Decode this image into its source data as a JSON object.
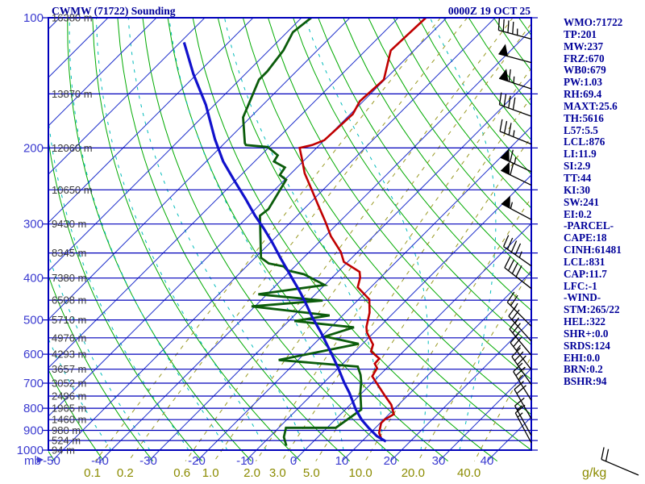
{
  "header": {
    "title": "CWMW (71722) Sounding",
    "datetime": "0000Z 19 OCT 25"
  },
  "stats_panel": {
    "lines": [
      "WMO:71722",
      "TP:201",
      "MW:237",
      "FRZ:670",
      "WB0:679",
      "PW:1.03",
      "RH:69.4",
      "MAXT:25.6",
      "TH:5616",
      "L57:5.5",
      "LCL:876",
      "LI:11.9",
      "SI:2.9",
      "TT:44",
      "KI:30",
      "SW:241",
      "EI:0.2",
      "-PARCEL-",
      "CAPE:18",
      "CINH:61481",
      "LCL:831",
      "CAP:11.7",
      "LFC:-1",
      "-WIND-",
      "STM:265/22",
      "HEL:322",
      "SHR+:0.0",
      "SRDS:124",
      "EHI:0.0",
      "BRN:0.2",
      "BSHR:94"
    ]
  },
  "axes": {
    "pressure_unit_label": "mb",
    "mixing_unit_label": "g/kg",
    "pressure_labels": [
      100,
      200,
      300,
      400,
      500,
      600,
      700,
      800,
      900,
      1000
    ],
    "altitude_labels": [
      [
        100,
        "16380 m"
      ],
      [
        150,
        "13870 m"
      ],
      [
        200,
        "12060 m"
      ],
      [
        250,
        "10650 m"
      ],
      [
        300,
        "9430 m"
      ],
      [
        350,
        "8345 m"
      ],
      [
        400,
        "7380 m"
      ],
      [
        450,
        "6508 m"
      ],
      [
        500,
        "5710 m"
      ],
      [
        550,
        "4976 m"
      ],
      [
        600,
        "4293 m"
      ],
      [
        650,
        "3657 m"
      ],
      [
        700,
        "3052 m"
      ],
      [
        750,
        "2496 m"
      ],
      [
        800,
        "1965 m"
      ],
      [
        850,
        "1460 m"
      ],
      [
        900,
        "980 m"
      ],
      [
        950,
        "524 m"
      ],
      [
        1000,
        "94 m"
      ]
    ],
    "temp_labels_c": [
      -50,
      -40,
      -30,
      -20,
      -10,
      0,
      10,
      20,
      30,
      40
    ],
    "mixing_labels": [
      "0.1",
      "0.2",
      "0.6",
      "1.0",
      "2.0",
      "3.0",
      "5.0",
      "10.0",
      "20.0",
      "40.0"
    ]
  },
  "chart_data": {
    "type": "skewt-log-p",
    "pressure_range_mb": [
      100,
      1000
    ],
    "pressure_line_step_mb": 50,
    "temp_axis_c": {
      "min": -50,
      "max": 40,
      "skew_deg": 45
    },
    "isotherm_step_c": 10,
    "dry_adiabats_K": {
      "min": 220,
      "max": 460,
      "step": 10
    },
    "moist_adiabats_thetaw_c": [
      -40,
      -32,
      -24,
      -16,
      -8,
      0,
      8,
      16,
      24,
      32
    ],
    "mixing_ratio_lines_gkg": [
      0.1,
      0.2,
      0.6,
      1.0,
      2.0,
      3.0,
      5.0,
      10.0,
      20.0,
      40.0
    ],
    "series": [
      {
        "name": "temperature",
        "color_key": "temp",
        "points_p_t": [
          [
            100,
            -64.3
          ],
          [
            119,
            -64.8
          ],
          [
            139,
            -60.2
          ],
          [
            156,
            -60.7
          ],
          [
            167,
            -59.5
          ],
          [
            192,
            -60.0
          ],
          [
            197,
            -61.5
          ],
          [
            200,
            -63.5
          ],
          [
            210,
            -61.2
          ],
          [
            229,
            -57.2
          ],
          [
            247,
            -53.0
          ],
          [
            272,
            -47.7
          ],
          [
            297,
            -42.8
          ],
          [
            320,
            -38.8
          ],
          [
            348,
            -33.5
          ],
          [
            367,
            -30.8
          ],
          [
            387,
            -25.5
          ],
          [
            399,
            -24.2
          ],
          [
            420,
            -22.7
          ],
          [
            448,
            -17.8
          ],
          [
            481,
            -15.0
          ],
          [
            519,
            -12.7
          ],
          [
            534,
            -11.5
          ],
          [
            570,
            -7.7
          ],
          [
            591,
            -6.7
          ],
          [
            614,
            -3.5
          ],
          [
            631,
            -3.4
          ],
          [
            646,
            -2.0
          ],
          [
            675,
            -1.3
          ],
          [
            702,
            1.2
          ],
          [
            747,
            5.2
          ],
          [
            785,
            8.5
          ],
          [
            826,
            11.0
          ],
          [
            849,
            10.2
          ],
          [
            866,
            10.2
          ],
          [
            912,
            11.8
          ],
          [
            945,
            13.7
          ]
        ]
      },
      {
        "name": "dewpoint",
        "color_key": "dewpoint",
        "points_p_t": [
          [
            100,
            -88.0
          ],
          [
            108,
            -88.8
          ],
          [
            119,
            -87.0
          ],
          [
            133,
            -86.0
          ],
          [
            139,
            -86.0
          ],
          [
            159,
            -83.0
          ],
          [
            170,
            -81.5
          ],
          [
            195,
            -75.8
          ],
          [
            197,
            -75.2
          ],
          [
            199,
            -70.3
          ],
          [
            208,
            -66.5
          ],
          [
            215,
            -66.0
          ],
          [
            222,
            -62.5
          ],
          [
            231,
            -62.0
          ],
          [
            237,
            -59.7
          ],
          [
            277,
            -57.3
          ],
          [
            287,
            -57.7
          ],
          [
            359,
            -48.8
          ],
          [
            370,
            -46.0
          ],
          [
            376,
            -42.3
          ],
          [
            384,
            -40.7
          ],
          [
            392,
            -36.5
          ],
          [
            415,
            -30.0
          ],
          [
            436,
            -41.8
          ],
          [
            451,
            -27.2
          ],
          [
            465,
            -40.7
          ],
          [
            488,
            -22.7
          ],
          [
            503,
            -28.8
          ],
          [
            520,
            -15.2
          ],
          [
            546,
            -19.3
          ],
          [
            568,
            -10.8
          ],
          [
            619,
            -24.0
          ],
          [
            641,
            -6.3
          ],
          [
            670,
            -4.0
          ],
          [
            694,
            -2.5
          ],
          [
            738,
            -0.3
          ],
          [
            771,
            1.5
          ],
          [
            806,
            3.3
          ],
          [
            888,
            1.8
          ],
          [
            888,
            -8.5
          ],
          [
            933,
            -7.0
          ],
          [
            977,
            -4.7
          ]
        ]
      },
      {
        "name": "parcel",
        "color_key": "parcel",
        "points_p_t": [
          [
            114,
            -109.2
          ],
          [
            135,
            -100.7
          ],
          [
            159,
            -91.8
          ],
          [
            191,
            -82.8
          ],
          [
            215,
            -76.5
          ],
          [
            237,
            -70.5
          ],
          [
            263,
            -64.0
          ],
          [
            287,
            -58.7
          ],
          [
            307,
            -54.3
          ],
          [
            330,
            -49.8
          ],
          [
            359,
            -44.8
          ],
          [
            380,
            -41.3
          ],
          [
            400,
            -38.2
          ],
          [
            426,
            -34.3
          ],
          [
            449,
            -31.2
          ],
          [
            492,
            -26.0
          ],
          [
            534,
            -21.0
          ],
          [
            574,
            -16.8
          ],
          [
            611,
            -13.2
          ],
          [
            650,
            -9.7
          ],
          [
            698,
            -5.8
          ],
          [
            736,
            -2.7
          ],
          [
            806,
            2.2
          ],
          [
            851,
            5.5
          ],
          [
            887,
            8.5
          ],
          [
            928,
            12.0
          ],
          [
            955,
            15.0
          ]
        ]
      }
    ],
    "wind_barbs": [
      {
        "p": 112,
        "dir_deg": 285,
        "speed_kt": 45
      },
      {
        "p": 127,
        "dir_deg": 285,
        "speed_kt": 50
      },
      {
        "p": 146,
        "dir_deg": 288,
        "speed_kt": 65
      },
      {
        "p": 169,
        "dir_deg": 290,
        "speed_kt": 40
      },
      {
        "p": 196,
        "dir_deg": 292,
        "speed_kt": 35
      },
      {
        "p": 227,
        "dir_deg": 295,
        "speed_kt": 65
      },
      {
        "p": 244,
        "dir_deg": 296,
        "speed_kt": 60
      },
      {
        "p": 293,
        "dir_deg": 298,
        "speed_kt": 55
      },
      {
        "p": 375,
        "dir_deg": 305,
        "speed_kt": 45
      },
      {
        "p": 423,
        "dir_deg": 308,
        "speed_kt": 40
      },
      {
        "p": 517,
        "dir_deg": 315,
        "speed_kt": 25
      },
      {
        "p": 560,
        "dir_deg": 318,
        "speed_kt": 25
      },
      {
        "p": 603,
        "dir_deg": 320,
        "speed_kt": 25
      },
      {
        "p": 651,
        "dir_deg": 322,
        "speed_kt": 25
      },
      {
        "p": 705,
        "dir_deg": 325,
        "speed_kt": 30
      },
      {
        "p": 767,
        "dir_deg": 328,
        "speed_kt": 25
      },
      {
        "p": 846,
        "dir_deg": 330,
        "speed_kt": 20
      },
      {
        "p": 925,
        "dir_deg": 331,
        "speed_kt": 15
      },
      {
        "p": 962,
        "dir_deg": 332,
        "speed_kt": 15
      }
    ],
    "surface_barb": {
      "x": 792,
      "y": 589,
      "dir_deg": 293,
      "speed_kt": 20
    }
  },
  "colors": {
    "frame": "#0000bb",
    "isotherm": "#2233cc",
    "adiabat": "#00aa00",
    "moist": "#00bbbb",
    "mixing": "#999922",
    "temp": "#c00000",
    "dewpoint": "#0b5c0b",
    "parcel": "#1111cc",
    "barb": "#000000",
    "label_blue": "#3a3ad0",
    "label_olive": "#8b8b00",
    "label_alt": "#3c3c3c",
    "text_navy": "#000099"
  }
}
